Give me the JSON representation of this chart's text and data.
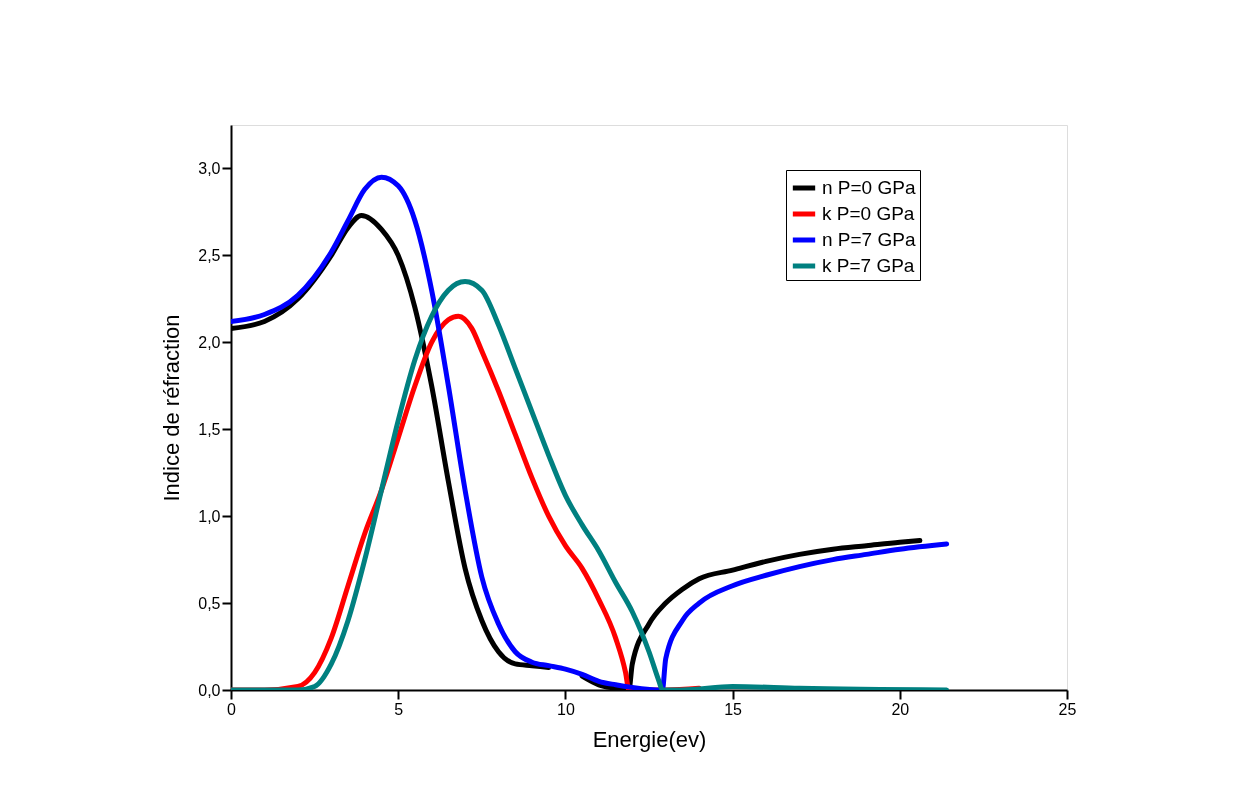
{
  "chart_data": {
    "type": "line",
    "xlabel": "Energie(ev)",
    "ylabel": "Indice de réfraction",
    "xlim": [
      0,
      25
    ],
    "ylim": [
      0,
      3.25
    ],
    "xticks": [
      0,
      5,
      10,
      15,
      20,
      25
    ],
    "yticks": [
      {
        "value": 0,
        "label": "0,0"
      },
      {
        "value": 0.5,
        "label": "0,5"
      },
      {
        "value": 1,
        "label": "1,0"
      },
      {
        "value": 1.5,
        "label": "1,5"
      },
      {
        "value": 2,
        "label": "2,0"
      },
      {
        "value": 2.5,
        "label": "2,5"
      },
      {
        "value": 3,
        "label": "3,0"
      }
    ],
    "grid": false,
    "legend": "top right",
    "marker": "none",
    "line_style": "solid",
    "series": [
      {
        "name": "n P=0 GPa",
        "color": "#000000",
        "x": [
          0,
          1,
          2,
          3,
          3.5,
          3.9,
          4.5,
          5,
          5.5,
          6,
          6.5,
          7,
          7.5,
          8,
          8.5,
          9,
          9.5,
          10,
          10.5,
          11,
          11.5,
          11.9,
          12,
          12.5,
          13,
          13.5,
          14,
          15,
          16,
          17,
          18,
          19,
          20,
          20.6
        ],
        "values": [
          2.08,
          2.12,
          2.25,
          2.5,
          2.66,
          2.73,
          2.65,
          2.5,
          2.2,
          1.75,
          1.2,
          0.7,
          0.4,
          0.22,
          0.15,
          0.14,
          0.13,
          null,
          0.08,
          0.03,
          0.01,
          0.0,
          0.15,
          0.38,
          0.5,
          0.58,
          0.64,
          0.69,
          0.74,
          0.78,
          0.81,
          0.83,
          0.85,
          0.86
        ]
      },
      {
        "name": "k P=0 GPa",
        "color": "#ff0000",
        "x": [
          0,
          1,
          2,
          2.5,
          3,
          3.5,
          4,
          4.5,
          5,
          5.5,
          6,
          6.5,
          6.8,
          7.2,
          7.5,
          8,
          8.5,
          9,
          9.5,
          10,
          10.5,
          11,
          11.5,
          11.8,
          11.9,
          12.5,
          13,
          14
        ],
        "values": [
          0,
          0,
          0.02,
          0.1,
          0.3,
          0.6,
          0.9,
          1.15,
          1.45,
          1.75,
          2.0,
          2.13,
          2.15,
          2.08,
          1.95,
          1.72,
          1.47,
          1.22,
          1.0,
          0.83,
          0.7,
          0.52,
          0.3,
          0.1,
          0,
          0,
          0,
          0.01
        ]
      },
      {
        "name": "n P=7 GPa",
        "color": "#0000ff",
        "x": [
          0,
          1,
          2,
          3,
          3.5,
          4,
          4.5,
          5,
          5.5,
          6,
          6.5,
          7,
          7.5,
          8,
          8.5,
          9,
          9.5,
          10,
          10.5,
          11,
          11.5,
          12,
          12.9,
          13,
          13.5,
          14,
          15,
          16,
          17,
          18,
          19,
          20,
          21.4
        ],
        "values": [
          2.12,
          2.16,
          2.27,
          2.52,
          2.7,
          2.88,
          2.95,
          2.9,
          2.7,
          2.3,
          1.75,
          1.15,
          0.65,
          0.38,
          0.22,
          0.16,
          0.14,
          0.12,
          0.09,
          0.05,
          0.03,
          0.015,
          0,
          0.18,
          0.4,
          0.5,
          0.6,
          0.66,
          0.71,
          0.75,
          0.78,
          0.81,
          0.84
        ]
      },
      {
        "name": "k P=7 GPa",
        "color": "#008080",
        "x": [
          0,
          2,
          2.5,
          3,
          3.5,
          4,
          4.5,
          5,
          5.5,
          6,
          6.5,
          7,
          7.5,
          8,
          8.5,
          9,
          9.5,
          10,
          10.5,
          11,
          11.5,
          12,
          12.5,
          12.8,
          12.9,
          13.5,
          15,
          17,
          21.4
        ],
        "values": [
          0,
          0,
          0.02,
          0.15,
          0.4,
          0.75,
          1.15,
          1.55,
          1.9,
          2.15,
          2.3,
          2.35,
          2.3,
          2.1,
          1.85,
          1.6,
          1.35,
          1.12,
          0.95,
          0.8,
          0.62,
          0.45,
          0.22,
          0.05,
          0,
          0,
          0.02,
          0.01,
          0
        ]
      }
    ]
  }
}
